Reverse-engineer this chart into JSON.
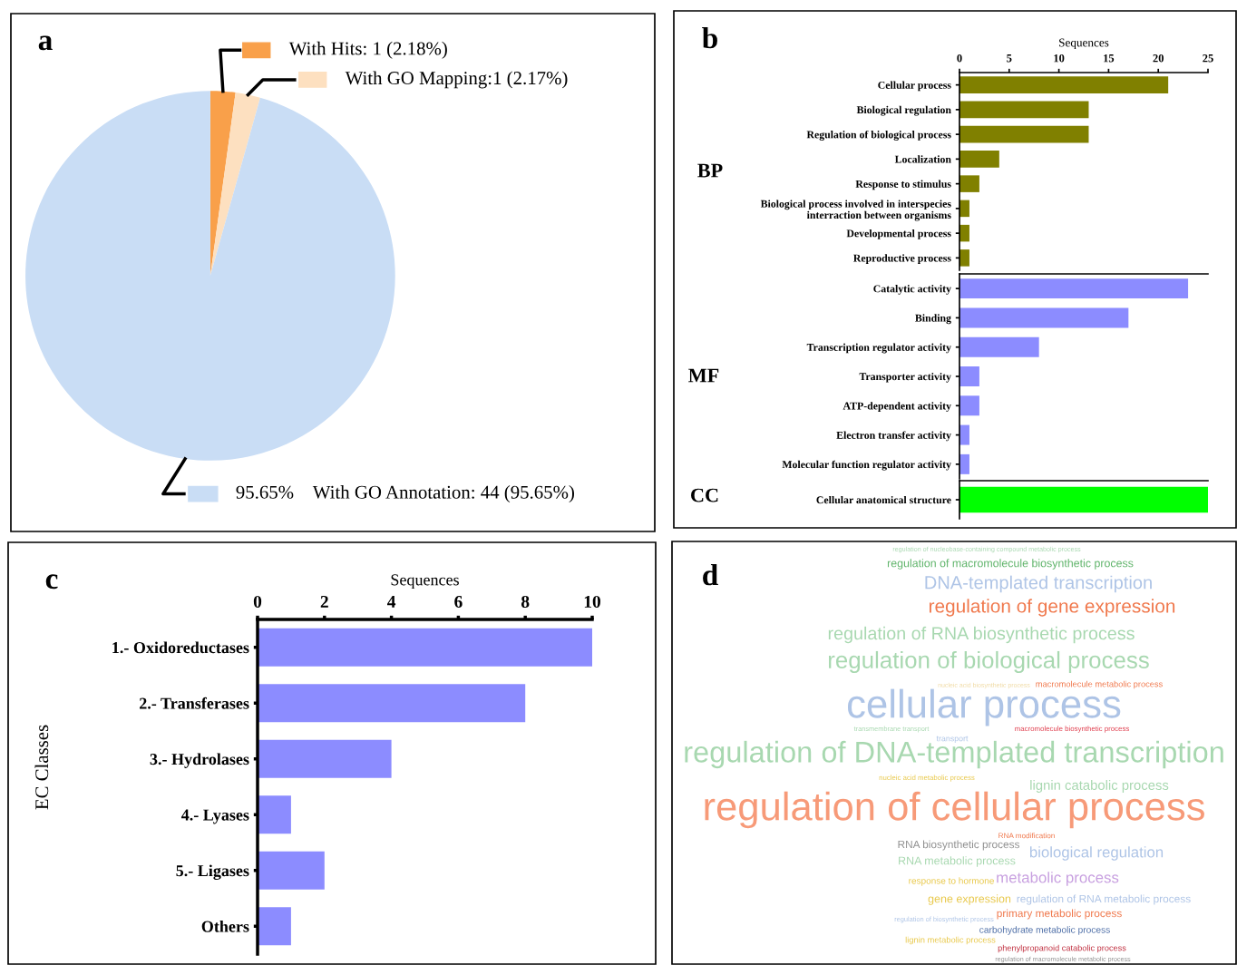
{
  "chart_data": [
    {
      "type": "pie",
      "legend": "top right",
      "annotations": [
        "a"
      ],
      "categories": [
        "With Hits: 1 (2.18%)",
        "With GO Mapping:1 (2.17%)",
        "With GO Annotation: 44 (95.65%)"
      ],
      "values": [
        2.18,
        2.17,
        95.65
      ],
      "colors": [
        "#f9a04a",
        "#fde0c0",
        "#c9ddf5"
      ],
      "value_labels": [
        null,
        null,
        "95.65%"
      ]
    },
    {
      "type": "bar",
      "orientation": "horizontal",
      "annotations": [
        "b"
      ],
      "xlabel": "Sequences",
      "ylabel": "BP",
      "categories": [
        "Cellular process",
        "Biological regulation",
        "Regulation of biological process",
        "Localization",
        "Response to stimulus",
        "Biological process involved in interspecies\ninterraction between organisms",
        "Developmental process",
        "Reproductive process"
      ],
      "values": [
        21,
        13,
        13,
        4,
        2,
        1,
        1,
        1
      ],
      "color": "#808000",
      "xlim": [
        0,
        25
      ],
      "xticks": [
        0,
        5,
        10,
        15,
        20,
        25
      ]
    },
    {
      "type": "bar",
      "orientation": "horizontal",
      "ylabel": "MF",
      "categories": [
        "Catalytic activity",
        "Binding",
        "Transcription regulator activity",
        "Transporter activity",
        "ATP-dependent activity",
        "Electron transfer activity",
        "Molecular function regulator activity"
      ],
      "values": [
        23,
        17,
        8,
        2,
        2,
        1,
        1
      ],
      "color": "#8c8cff",
      "xlim": [
        0,
        25
      ],
      "tick_labels": "y"
    },
    {
      "type": "bar",
      "orientation": "horizontal",
      "ylabel": "CC",
      "categories": [
        "Cellular anatomical structure"
      ],
      "values": [
        25
      ],
      "color": "#00ff00",
      "xlim": [
        0,
        25
      ],
      "tick_labels": "y"
    },
    {
      "type": "bar",
      "orientation": "horizontal",
      "annotations": [
        "c"
      ],
      "xlabel": "Sequences",
      "ylabel": "EC Classes",
      "categories": [
        "1.- Oxidoreductases",
        "2.- Transferases",
        "3.- Hydrolases",
        "4.- Lyases",
        "5.- Ligases",
        "Others"
      ],
      "values": [
        10,
        8,
        4,
        1,
        2,
        1
      ],
      "color": "#8c8cff",
      "xlim": [
        0,
        10
      ],
      "xticks": [
        0,
        2,
        4,
        6,
        8,
        10
      ]
    },
    {
      "type": "other",
      "annotations": [
        "d",
        "regulation of nucleobase-containing compound metabolic process",
        "regulation of macromolecule biosynthetic process",
        "DNA-templated transcription",
        "regulation of gene expression",
        "regulation of RNA biosynthetic process",
        "regulation of biological process",
        "nucleic acid biosynthetic process",
        "macromolecule metabolic process",
        "cellular process",
        "transmembrane transport",
        "macromolecule biosynthetic process",
        "transport",
        "regulation of DNA-templated transcription",
        "nucleic acid metabolic process",
        "lignin catabolic process",
        "regulation of cellular process",
        "RNA modification",
        "RNA biosynthetic process",
        "biological regulation",
        "RNA metabolic process",
        "response to hormone",
        "metabolic process",
        "gene expression",
        "regulation of RNA metabolic process",
        "regulation of biosynthetic process",
        "primary metabolic process",
        "carbohydrate metabolic process",
        "lignin metabolic process",
        "phenylpropanoid catabolic process",
        "regulation of macromolecule metabolic process"
      ],
      "colors": [
        "#a8d8b0",
        "#5fb46a",
        "#aec4e6",
        "#f0784c",
        "#a8d8b0",
        "#a8d8b0",
        "#efd9a0",
        "#f0784c",
        "#aec4e6",
        "#a8d8b0",
        "#e04050",
        "#aec4e6",
        "#a8d8b0",
        "#e8c84a",
        "#a8d8b0",
        "#f79a78",
        "#f0784c",
        "#909090",
        "#aec4e6",
        "#a8d8b0",
        "#e8c84a",
        "#c8a0e0",
        "#e8c84a",
        "#aec4e6",
        "#aec4e6",
        "#f0784c",
        "#5070a8",
        "#e8c84a",
        "#c03040",
        "#909090"
      ]
    }
  ]
}
